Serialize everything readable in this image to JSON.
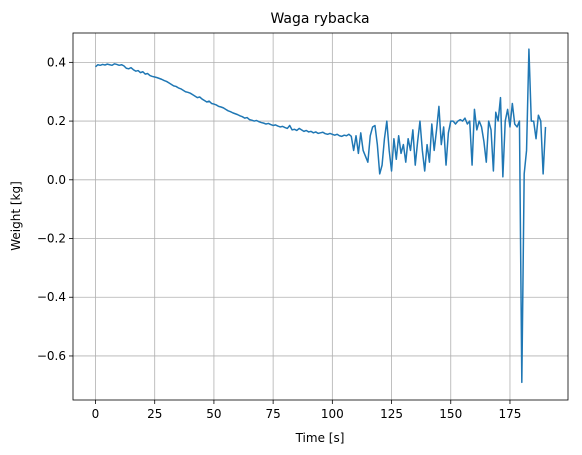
{
  "chart_data": {
    "type": "line",
    "title": "Waga rybacka",
    "x_label": "Time [s]",
    "y_label": "Weight [kg]",
    "x": [
      0,
      1,
      2,
      3,
      4,
      5,
      6,
      7,
      8,
      9,
      10,
      11,
      12,
      13,
      14,
      15,
      16,
      17,
      18,
      19,
      20,
      21,
      22,
      23,
      24,
      25,
      26,
      27,
      28,
      29,
      30,
      31,
      32,
      33,
      34,
      35,
      36,
      37,
      38,
      39,
      40,
      41,
      42,
      43,
      44,
      45,
      46,
      47,
      48,
      49,
      50,
      51,
      52,
      53,
      54,
      55,
      56,
      57,
      58,
      59,
      60,
      61,
      62,
      63,
      64,
      65,
      66,
      67,
      68,
      69,
      70,
      71,
      72,
      73,
      74,
      75,
      76,
      77,
      78,
      79,
      80,
      81,
      82,
      83,
      84,
      85,
      86,
      87,
      88,
      89,
      90,
      91,
      92,
      93,
      94,
      95,
      96,
      97,
      98,
      99,
      100,
      101,
      102,
      103,
      104,
      105,
      106,
      107,
      108,
      109,
      110,
      111,
      112,
      113,
      114,
      115,
      116,
      117,
      118,
      119,
      120,
      121,
      122,
      123,
      124,
      125,
      126,
      127,
      128,
      129,
      130,
      131,
      132,
      133,
      134,
      135,
      136,
      137,
      138,
      139,
      140,
      141,
      142,
      143,
      144,
      145,
      146,
      147,
      148,
      149,
      150,
      151,
      152,
      153,
      154,
      155,
      156,
      157,
      158,
      159,
      160,
      161,
      162,
      163,
      164,
      165,
      166,
      167,
      168,
      169,
      170,
      171,
      172,
      173,
      174,
      175,
      176,
      177,
      178,
      179,
      180,
      181,
      182,
      183,
      184,
      185,
      186,
      187,
      188,
      189,
      190
    ],
    "series": [
      {
        "name": "Weight",
        "color": "#1f77b4",
        "values": [
          0.385,
          0.392,
          0.39,
          0.393,
          0.391,
          0.394,
          0.392,
          0.39,
          0.395,
          0.393,
          0.39,
          0.392,
          0.388,
          0.38,
          0.378,
          0.382,
          0.375,
          0.37,
          0.372,
          0.365,
          0.368,
          0.36,
          0.362,
          0.355,
          0.352,
          0.35,
          0.348,
          0.345,
          0.342,
          0.338,
          0.335,
          0.33,
          0.325,
          0.32,
          0.318,
          0.313,
          0.31,
          0.305,
          0.3,
          0.298,
          0.295,
          0.29,
          0.285,
          0.28,
          0.282,
          0.275,
          0.27,
          0.265,
          0.268,
          0.26,
          0.258,
          0.255,
          0.25,
          0.248,
          0.245,
          0.24,
          0.235,
          0.232,
          0.228,
          0.225,
          0.222,
          0.218,
          0.215,
          0.21,
          0.212,
          0.205,
          0.203,
          0.2,
          0.202,
          0.198,
          0.195,
          0.193,
          0.19,
          0.192,
          0.188,
          0.185,
          0.187,
          0.183,
          0.18,
          0.182,
          0.178,
          0.175,
          0.185,
          0.17,
          0.172,
          0.168,
          0.175,
          0.17,
          0.165,
          0.168,
          0.163,
          0.165,
          0.16,
          0.163,
          0.158,
          0.16,
          0.162,
          0.157,
          0.155,
          0.158,
          0.155,
          0.152,
          0.155,
          0.15,
          0.148,
          0.152,
          0.15,
          0.155,
          0.148,
          0.1,
          0.15,
          0.09,
          0.16,
          0.1,
          0.08,
          0.06,
          0.15,
          0.18,
          0.185,
          0.12,
          0.02,
          0.05,
          0.14,
          0.2,
          0.1,
          0.03,
          0.14,
          0.07,
          0.15,
          0.09,
          0.12,
          0.06,
          0.14,
          0.1,
          0.17,
          0.05,
          0.13,
          0.2,
          0.1,
          0.03,
          0.12,
          0.06,
          0.19,
          0.1,
          0.17,
          0.25,
          0.12,
          0.18,
          0.05,
          0.16,
          0.2,
          0.2,
          0.19,
          0.2,
          0.205,
          0.2,
          0.21,
          0.19,
          0.2,
          0.05,
          0.24,
          0.17,
          0.2,
          0.18,
          0.13,
          0.06,
          0.2,
          0.17,
          0.03,
          0.23,
          0.2,
          0.28,
          0.01,
          0.2,
          0.24,
          0.18,
          0.26,
          0.19,
          0.18,
          0.2,
          -0.69,
          0.02,
          0.1,
          0.445,
          0.2,
          0.2,
          0.14,
          0.22,
          0.2,
          0.02,
          0.18
        ]
      }
    ],
    "xlim": [
      -9.5,
      199.5
    ],
    "ylim": [
      -0.75,
      0.5
    ],
    "xticks": [
      0,
      25,
      50,
      75,
      100,
      125,
      150,
      175
    ],
    "yticks": [
      {
        "value": -0.6,
        "label": "−0.6"
      },
      {
        "value": -0.4,
        "label": "−0.4"
      },
      {
        "value": -0.2,
        "label": "−0.2"
      },
      {
        "value": 0,
        "label": "0.0"
      },
      0.2,
      0.4
    ],
    "grid": true
  }
}
